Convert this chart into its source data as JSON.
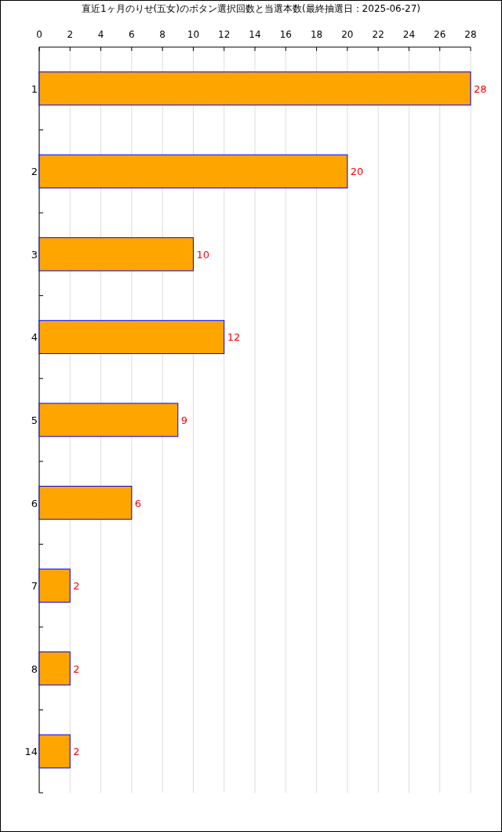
{
  "chart_data": {
    "type": "bar",
    "orientation": "horizontal",
    "title": "直近1ヶ月のりせ(五女)のボタン選択回数と当選本数(最終抽選日：2025-06-27)",
    "categories": [
      "1",
      "2",
      "3",
      "4",
      "5",
      "6",
      "7",
      "8",
      "14"
    ],
    "values": [
      28,
      20,
      10,
      12,
      9,
      6,
      2,
      2,
      2
    ],
    "color": "#ffa500",
    "xlim": [
      0,
      28
    ],
    "xticks": [
      0,
      2,
      4,
      6,
      8,
      10,
      12,
      14,
      16,
      18,
      20,
      22,
      24,
      26,
      28
    ],
    "grid": "x",
    "data_labels": true
  }
}
